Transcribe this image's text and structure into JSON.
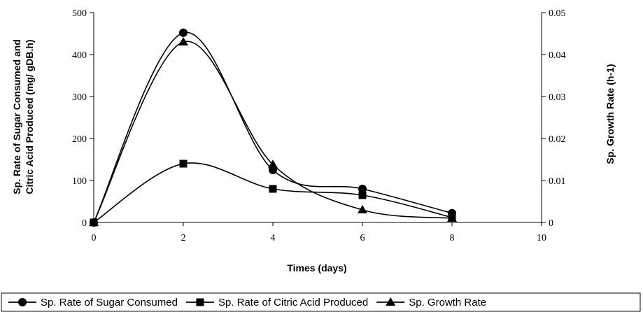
{
  "chart_data": {
    "type": "line",
    "x": [
      0,
      2,
      4,
      6,
      8
    ],
    "xlabel": "Times (days)",
    "ylabel_lines": [
      "Sp. Rate of Sugar Consumed and",
      "Citric Acid Produced  (mg/ gDB.h)"
    ],
    "y2label": "Sp. Growth Rate (h-1)",
    "xlim": [
      0,
      10
    ],
    "ylim": [
      0,
      500
    ],
    "y2lim": [
      0,
      0.05
    ],
    "xticks": [
      "0",
      "2",
      "4",
      "6",
      "8",
      "10"
    ],
    "yticks": [
      "0",
      "100",
      "200",
      "300",
      "400",
      "500"
    ],
    "y2ticks": [
      "0",
      "0.01",
      "0.02",
      "0.03",
      "0.04",
      "0.05"
    ],
    "grid": false,
    "legend_position": "bottom",
    "series": [
      {
        "name": "Sp. Rate of Sugar Consumed",
        "axis": "left",
        "marker": "circle",
        "values": [
          0,
          452,
          125,
          80,
          22
        ]
      },
      {
        "name": "Sp. Rate of Citric Acid Produced",
        "axis": "left",
        "marker": "square",
        "values": [
          0,
          140,
          80,
          65,
          12
        ]
      },
      {
        "name": "Sp. Growth Rate",
        "axis": "right",
        "marker": "triangle",
        "values": [
          0,
          0.043,
          0.0138,
          0.003,
          0.001
        ]
      }
    ]
  }
}
